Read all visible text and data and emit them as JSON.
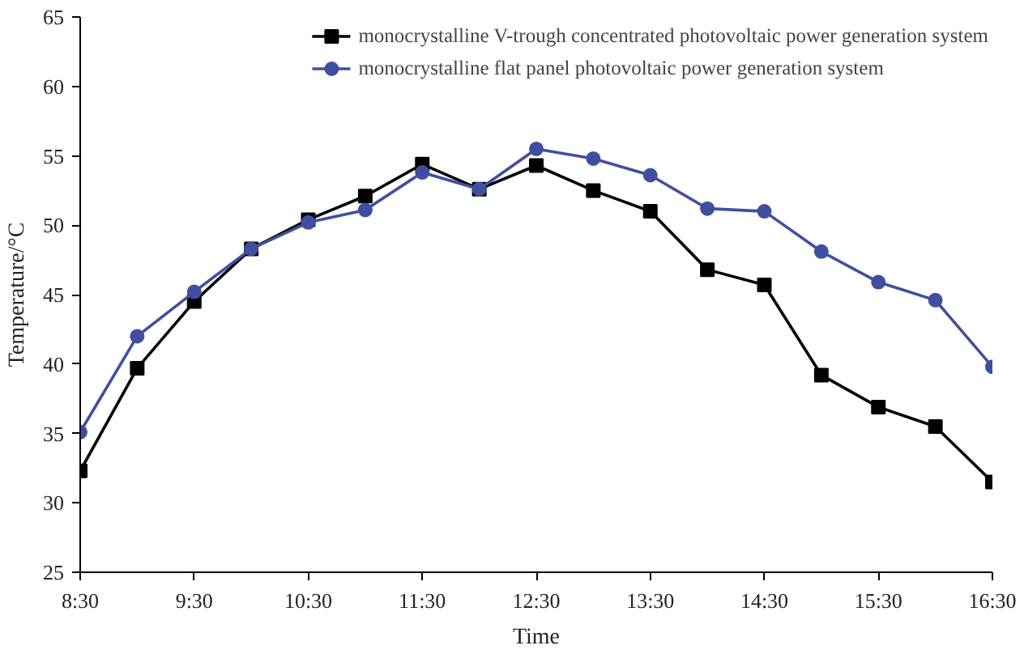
{
  "chart_data": {
    "type": "line",
    "xlabel": "Time",
    "ylabel": "Temperature/°C",
    "x": [
      8.5,
      9,
      9.5,
      10,
      10.5,
      11,
      11.5,
      12,
      12.5,
      13,
      13.5,
      14,
      14.5,
      15,
      15.5,
      16,
      16.5
    ],
    "xlim": [
      8.5,
      16.5
    ],
    "xticks": [
      {
        "value": 8.5,
        "label": "8:30"
      },
      {
        "value": 9.5,
        "label": "9:30"
      },
      {
        "value": 10.5,
        "label": "10:30"
      },
      {
        "value": 11.5,
        "label": "11:30"
      },
      {
        "value": 12.5,
        "label": "12:30"
      },
      {
        "value": 13.5,
        "label": "13:30"
      },
      {
        "value": 14.5,
        "label": "14:30"
      },
      {
        "value": 15.5,
        "label": "15:30"
      },
      {
        "value": 16.5,
        "label": "16:30"
      }
    ],
    "ylim": [
      25,
      65
    ],
    "yticks": [
      25,
      30,
      35,
      40,
      45,
      50,
      55,
      60,
      65
    ],
    "grid": false,
    "legend": "top right",
    "line_style": "solid",
    "series": [
      {
        "name": "monocrystalline V-trough concentrated photovoltaic power generation system",
        "color": "#000000",
        "marker": "square",
        "values": [
          32.3,
          39.7,
          44.5,
          48.3,
          50.4,
          52.1,
          54.4,
          52.6,
          54.3,
          52.5,
          51.0,
          46.8,
          45.7,
          39.2,
          36.9,
          35.5,
          31.5
        ]
      },
      {
        "name": "monocrystalline flat panel photovoltaic power generation system",
        "color": "#3f4fa0",
        "marker": "circle",
        "values": [
          35.1,
          42.0,
          45.2,
          48.3,
          50.2,
          51.1,
          53.8,
          52.6,
          55.5,
          54.8,
          53.6,
          51.2,
          51.0,
          48.1,
          45.9,
          44.6,
          39.8
        ]
      }
    ]
  }
}
